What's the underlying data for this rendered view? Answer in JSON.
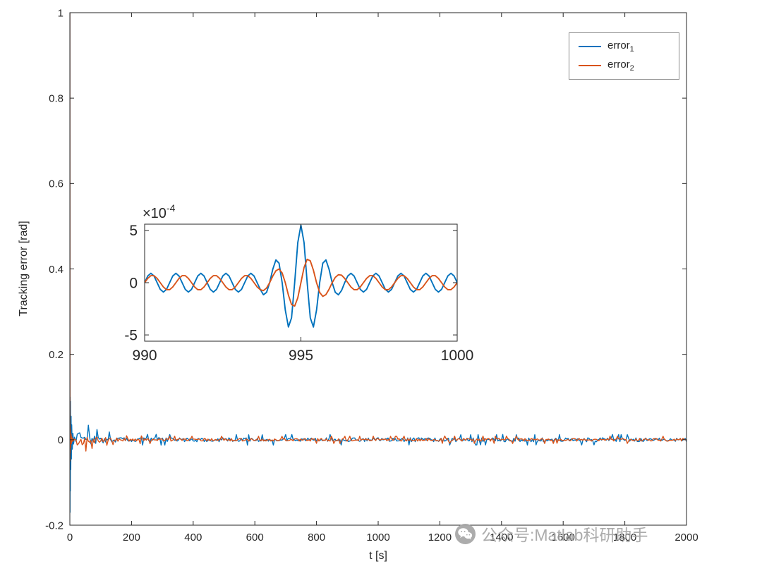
{
  "colors": {
    "axis": "#262626",
    "series1": "#0072BD",
    "series2": "#D95319",
    "watermark": "#a8a8a8",
    "legend_border": "#8c8c8c"
  },
  "legend": {
    "position": "top-right",
    "entries": [
      {
        "base": "error",
        "sub": "1"
      },
      {
        "base": "error",
        "sub": "2"
      }
    ]
  },
  "watermark": {
    "icon": "wechat-icon",
    "text": "公众号:Matlab科研助手"
  },
  "chart_data": [
    {
      "id": "main",
      "type": "line",
      "title": "",
      "xlabel": "t [s]",
      "ylabel": "Tracking error [rad]",
      "xlim": [
        0,
        2000
      ],
      "ylim": [
        -0.2,
        1
      ],
      "xticks": [
        0,
        200,
        400,
        600,
        800,
        1000,
        1200,
        1400,
        1600,
        1800,
        2000
      ],
      "yticks": [
        -0.2,
        0,
        0.2,
        0.4,
        0.6,
        0.8,
        1
      ],
      "grid": false,
      "legend_position": "top-right",
      "tail_noise": {
        "gain": 6,
        "tau_s": 50,
        "step_s": 4,
        "spike_threshold": 0.93,
        "spike_gain": 2.5
      },
      "series": [
        {
          "name": "error_1",
          "color": "#0072BD",
          "tail_noise_amplitude": 0.005,
          "x": [
            0,
            0.5,
            1,
            1.5,
            2,
            3,
            4,
            5,
            6,
            8,
            10,
            12,
            15,
            20,
            25,
            30,
            40,
            60,
            100,
            200,
            400,
            600,
            800,
            1000,
            1200,
            1400,
            1600,
            1800,
            2000
          ],
          "y": [
            1,
            -0.17,
            0.1,
            -0.12,
            0.09,
            -0.07,
            0.055,
            -0.045,
            0.035,
            -0.022,
            0.015,
            -0.01,
            0.006,
            -0.004,
            0.0025,
            -0.0015,
            0.001,
            0.0005,
            0.0002,
            0,
            0,
            0,
            0,
            0,
            0,
            0,
            0,
            0,
            0
          ]
        },
        {
          "name": "error_2",
          "color": "#D95319",
          "tail_noise_amplitude": 0.0035,
          "x": [
            0,
            0.5,
            1,
            1.5,
            2,
            3,
            4,
            5,
            6,
            8,
            10,
            12,
            15,
            20,
            25,
            30,
            40,
            60,
            100,
            200,
            400,
            600,
            800,
            1000,
            1200,
            1400,
            1600,
            1800,
            2000
          ],
          "y": [
            1,
            -0.05,
            0.035,
            -0.03,
            0.025,
            -0.018,
            0.013,
            -0.009,
            0.007,
            -0.004,
            0.003,
            -0.002,
            0.0012,
            -0.0008,
            0.0005,
            -0.0003,
            0.0002,
            0.0001,
            0,
            0,
            0,
            0,
            0,
            0,
            0,
            0,
            0,
            0,
            0
          ]
        }
      ]
    },
    {
      "id": "inset-zoom",
      "type": "line",
      "xlim": [
        990,
        1000
      ],
      "ylim_scaled": [
        -5.6,
        5.6
      ],
      "y_scale": 0.0001,
      "y_exponent_label": {
        "base": "×10",
        "sup": "-4"
      },
      "xticks": [
        990,
        995,
        1000
      ],
      "yticks_scaled": [
        -5,
        0,
        5
      ],
      "x_start": 990,
      "x_step": 0.1,
      "series": [
        {
          "name": "error_1",
          "color": "#0072BD",
          "y_scaled": [
            0,
            0.64,
            0.9,
            0.64,
            0,
            -0.64,
            -0.9,
            -0.64,
            0,
            0.64,
            0.9,
            0.64,
            0,
            -0.64,
            -0.9,
            -0.64,
            0,
            0.64,
            0.9,
            0.64,
            0,
            -0.64,
            -0.9,
            -0.64,
            0,
            0.64,
            0.9,
            0.64,
            0,
            -0.64,
            -0.9,
            -0.64,
            0,
            0.64,
            0.9,
            0.64,
            0,
            -0.64,
            -1.16,
            -0.93,
            0,
            1.29,
            2.18,
            1.87,
            0,
            -2.62,
            -4.24,
            -3.37,
            0,
            3.84,
            5.5,
            3.84,
            0,
            -3.37,
            -4.24,
            -2.62,
            0,
            1.87,
            2.18,
            1.29,
            0,
            -0.93,
            -1.16,
            -0.75,
            0,
            0.64,
            0.9,
            0.64,
            0,
            -0.64,
            -0.9,
            -0.64,
            0,
            0.64,
            0.9,
            0.64,
            0,
            -0.64,
            -0.9,
            -0.64,
            0,
            0.64,
            0.9,
            0.64,
            0,
            -0.64,
            -0.9,
            -0.64,
            0,
            0.64,
            0.9,
            0.64,
            0,
            -0.64,
            -0.9,
            -0.64,
            0,
            0.64,
            0.9,
            0.64,
            0
          ]
        },
        {
          "name": "error_2",
          "color": "#D95319",
          "y_scaled": [
            0,
            0.41,
            0.67,
            0.67,
            0.41,
            0,
            -0.41,
            -0.67,
            -0.67,
            -0.41,
            0,
            0.41,
            0.67,
            0.67,
            0.41,
            0,
            -0.41,
            -0.67,
            -0.67,
            -0.41,
            0,
            0.41,
            0.67,
            0.67,
            0.41,
            0,
            -0.41,
            -0.67,
            -0.67,
            -0.41,
            0,
            0.41,
            0.67,
            0.67,
            0.41,
            0,
            -0.41,
            -0.67,
            -0.76,
            -0.51,
            0,
            0.63,
            1.14,
            1.31,
            0.93,
            0,
            -1.19,
            -2.09,
            -2.24,
            -1.45,
            0,
            1.45,
            2.24,
            2.09,
            1.19,
            0,
            -0.93,
            -1.31,
            -1.14,
            -0.63,
            0,
            0.51,
            0.76,
            0.72,
            0.41,
            0,
            -0.41,
            -0.67,
            -0.67,
            -0.41,
            0,
            0.41,
            0.67,
            0.67,
            0.41,
            0,
            -0.41,
            -0.67,
            -0.67,
            -0.41,
            0,
            0.41,
            0.67,
            0.67,
            0.41,
            0,
            -0.41,
            -0.67,
            -0.67,
            -0.41,
            0,
            0.41,
            0.67,
            0.67,
            0.41,
            0,
            -0.41,
            -0.67,
            -0.67,
            -0.41,
            0
          ]
        }
      ]
    }
  ]
}
